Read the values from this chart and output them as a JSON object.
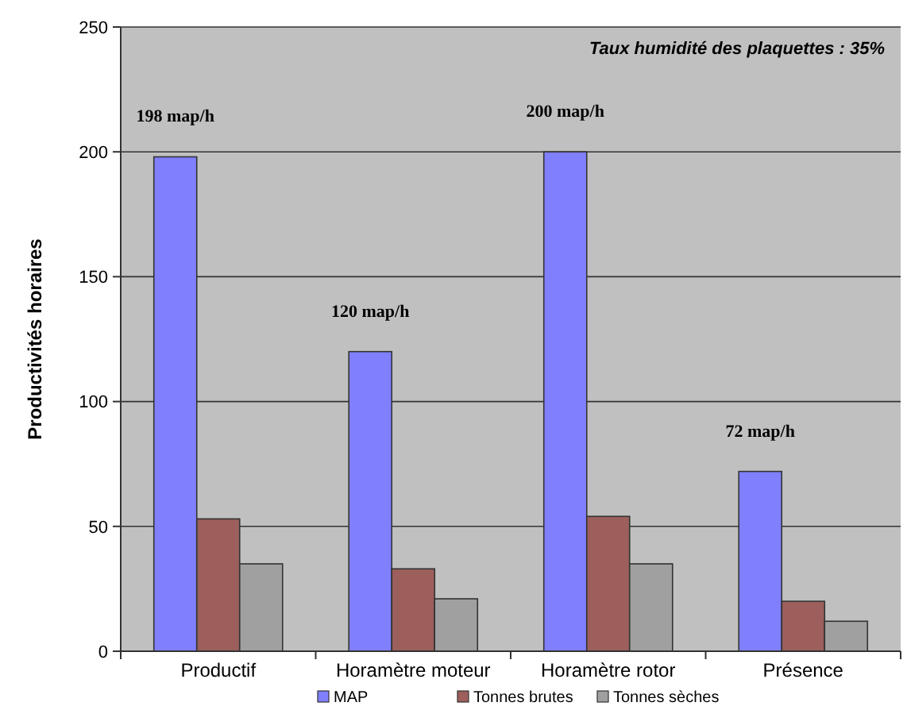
{
  "chart_data": {
    "type": "bar",
    "ylabel": "Productivités horaires",
    "categories": [
      "Productif",
      "Horamètre moteur",
      "Horamètre rotor",
      "Présence"
    ],
    "series": [
      {
        "name": "MAP",
        "color": "#8080ff",
        "values": [
          198,
          120,
          200,
          72
        ],
        "value_labels": [
          "198 map/h",
          "120 map/h",
          "200 map/h",
          "72 map/h"
        ]
      },
      {
        "name": "Tonnes brutes",
        "color": "#9c5f5c",
        "values": [
          53,
          33,
          54,
          20
        ]
      },
      {
        "name": "Tonnes sèches",
        "color": "#a0a0a0",
        "values": [
          35,
          21,
          35,
          12
        ]
      }
    ],
    "ylim": [
      0,
      250
    ],
    "yticks": [
      0,
      50,
      100,
      150,
      200,
      250
    ],
    "grid": "y",
    "legend": "bottom",
    "annotations": [
      "Taux humidité des plaquettes : 35%"
    ]
  }
}
